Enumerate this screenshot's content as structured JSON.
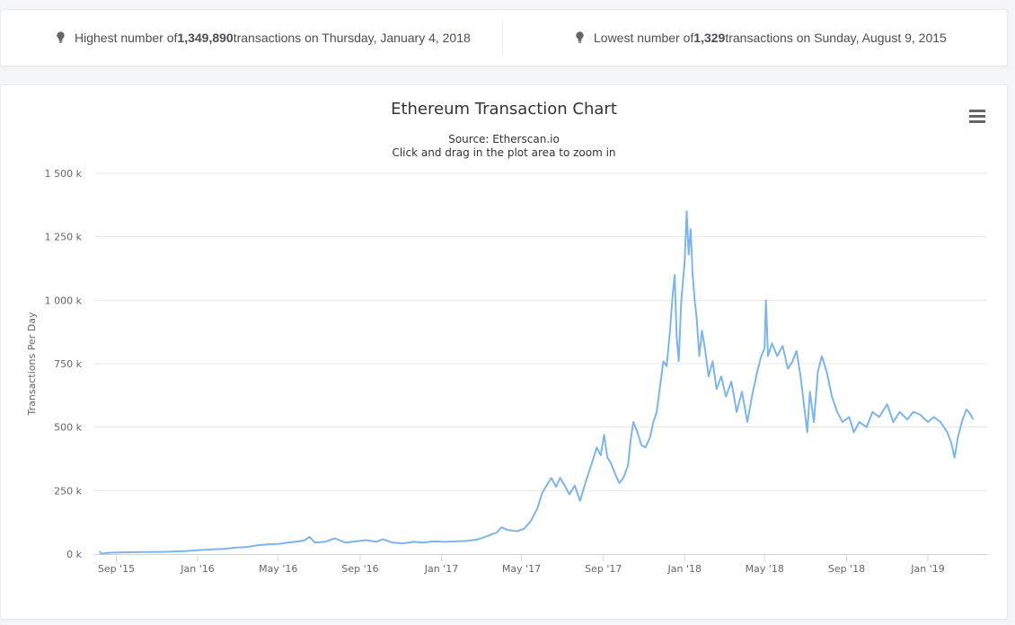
{
  "stats": {
    "highest": {
      "prefix": "Highest number of ",
      "value": "1,349,890",
      "suffix": " transactions on Thursday, January 4, 2018"
    },
    "lowest": {
      "prefix": "Lowest number of ",
      "value": "1,329",
      "suffix": " transactions on Sunday, August 9, 2015"
    },
    "icon": "lightbulb-icon"
  },
  "colors": {
    "line": "#7cb5ec",
    "grid": "#e6e6e6",
    "text": "#666666"
  },
  "chart_data": {
    "type": "line",
    "title": "Ethereum Transaction Chart",
    "subtitle": "Source: Etherscan.io",
    "subtitle2": "Click and drag in the plot area to zoom in",
    "ylabel": "Transactions Per Day",
    "xlabel": "",
    "ylim": [
      0,
      1500000
    ],
    "xlim": [
      "2015-07-30",
      "2019-03-31"
    ],
    "y_ticks": [
      0,
      250000,
      500000,
      750000,
      1000000,
      1250000,
      1500000
    ],
    "y_tick_labels": [
      "0 k",
      "250 k",
      "500 k",
      "750 k",
      "1 000 k",
      "1 250 k",
      "1 500 k"
    ],
    "x_ticks": [
      {
        "date": "2015-09-01",
        "label": "Sep '15"
      },
      {
        "date": "2016-01-01",
        "label": "Jan '16"
      },
      {
        "date": "2016-05-01",
        "label": "May '16"
      },
      {
        "date": "2016-09-01",
        "label": "Sep '16"
      },
      {
        "date": "2017-01-01",
        "label": "Jan '17"
      },
      {
        "date": "2017-05-01",
        "label": "May '17"
      },
      {
        "date": "2017-09-01",
        "label": "Sep '17"
      },
      {
        "date": "2018-01-01",
        "label": "Jan '18"
      },
      {
        "date": "2018-05-01",
        "label": "May '18"
      },
      {
        "date": "2018-09-01",
        "label": "Sep '18"
      },
      {
        "date": "2019-01-01",
        "label": "Jan '19"
      }
    ],
    "grid": true,
    "legend": "none",
    "series": [
      {
        "values": [
          [
            "2015-08-07",
            12000
          ],
          [
            "2015-08-09",
            1329
          ],
          [
            "2015-08-20",
            5000
          ],
          [
            "2015-09-15",
            7000
          ],
          [
            "2015-10-15",
            8000
          ],
          [
            "2015-11-15",
            9000
          ],
          [
            "2015-12-15",
            12000
          ],
          [
            "2016-01-01",
            15000
          ],
          [
            "2016-01-20",
            18000
          ],
          [
            "2016-02-10",
            20000
          ],
          [
            "2016-02-25",
            25000
          ],
          [
            "2016-03-15",
            28000
          ],
          [
            "2016-04-01",
            35000
          ],
          [
            "2016-04-15",
            38000
          ],
          [
            "2016-05-01",
            40000
          ],
          [
            "2016-05-15",
            45000
          ],
          [
            "2016-06-01",
            50000
          ],
          [
            "2016-06-10",
            55000
          ],
          [
            "2016-06-17",
            68000
          ],
          [
            "2016-06-25",
            45000
          ],
          [
            "2016-07-10",
            48000
          ],
          [
            "2016-07-25",
            62000
          ],
          [
            "2016-08-10",
            45000
          ],
          [
            "2016-08-25",
            50000
          ],
          [
            "2016-09-10",
            55000
          ],
          [
            "2016-09-25",
            48000
          ],
          [
            "2016-10-05",
            58000
          ],
          [
            "2016-10-20",
            45000
          ],
          [
            "2016-11-05",
            42000
          ],
          [
            "2016-11-20",
            48000
          ],
          [
            "2016-12-05",
            45000
          ],
          [
            "2016-12-20",
            50000
          ],
          [
            "2017-01-05",
            48000
          ],
          [
            "2017-01-25",
            50000
          ],
          [
            "2017-02-10",
            52000
          ],
          [
            "2017-02-25",
            58000
          ],
          [
            "2017-03-10",
            70000
          ],
          [
            "2017-03-25",
            85000
          ],
          [
            "2017-04-01",
            105000
          ],
          [
            "2017-04-10",
            95000
          ],
          [
            "2017-04-25",
            90000
          ],
          [
            "2017-05-05",
            100000
          ],
          [
            "2017-05-15",
            130000
          ],
          [
            "2017-05-25",
            180000
          ],
          [
            "2017-06-01",
            240000
          ],
          [
            "2017-06-10",
            280000
          ],
          [
            "2017-06-15",
            300000
          ],
          [
            "2017-06-22",
            265000
          ],
          [
            "2017-06-28",
            300000
          ],
          [
            "2017-07-05",
            270000
          ],
          [
            "2017-07-12",
            235000
          ],
          [
            "2017-07-20",
            270000
          ],
          [
            "2017-07-28",
            210000
          ],
          [
            "2017-08-05",
            280000
          ],
          [
            "2017-08-15",
            360000
          ],
          [
            "2017-08-22",
            420000
          ],
          [
            "2017-08-28",
            390000
          ],
          [
            "2017-09-02",
            470000
          ],
          [
            "2017-09-07",
            380000
          ],
          [
            "2017-09-12",
            360000
          ],
          [
            "2017-09-18",
            320000
          ],
          [
            "2017-09-25",
            280000
          ],
          [
            "2017-10-01",
            300000
          ],
          [
            "2017-10-08",
            350000
          ],
          [
            "2017-10-12",
            450000
          ],
          [
            "2017-10-16",
            520000
          ],
          [
            "2017-10-22",
            480000
          ],
          [
            "2017-10-28",
            430000
          ],
          [
            "2017-11-03",
            420000
          ],
          [
            "2017-11-10",
            460000
          ],
          [
            "2017-11-15",
            520000
          ],
          [
            "2017-11-20",
            560000
          ],
          [
            "2017-11-25",
            660000
          ],
          [
            "2017-11-30",
            760000
          ],
          [
            "2017-12-05",
            740000
          ],
          [
            "2017-12-10",
            880000
          ],
          [
            "2017-12-14",
            1020000
          ],
          [
            "2017-12-17",
            1100000
          ],
          [
            "2017-12-20",
            860000
          ],
          [
            "2017-12-23",
            760000
          ],
          [
            "2017-12-27",
            1000000
          ],
          [
            "2018-01-01",
            1150000
          ],
          [
            "2018-01-04",
            1349890
          ],
          [
            "2018-01-07",
            1180000
          ],
          [
            "2018-01-10",
            1280000
          ],
          [
            "2018-01-13",
            1100000
          ],
          [
            "2018-01-16",
            1000000
          ],
          [
            "2018-01-19",
            930000
          ],
          [
            "2018-01-23",
            780000
          ],
          [
            "2018-01-27",
            880000
          ],
          [
            "2018-02-01",
            800000
          ],
          [
            "2018-02-06",
            700000
          ],
          [
            "2018-02-12",
            760000
          ],
          [
            "2018-02-18",
            650000
          ],
          [
            "2018-02-25",
            700000
          ],
          [
            "2018-03-04",
            620000
          ],
          [
            "2018-03-12",
            680000
          ],
          [
            "2018-03-20",
            560000
          ],
          [
            "2018-03-28",
            640000
          ],
          [
            "2018-04-05",
            520000
          ],
          [
            "2018-04-12",
            620000
          ],
          [
            "2018-04-20",
            720000
          ],
          [
            "2018-04-26",
            780000
          ],
          [
            "2018-05-01",
            810000
          ],
          [
            "2018-05-03",
            1000000
          ],
          [
            "2018-05-06",
            780000
          ],
          [
            "2018-05-12",
            830000
          ],
          [
            "2018-05-20",
            780000
          ],
          [
            "2018-05-28",
            820000
          ],
          [
            "2018-06-05",
            730000
          ],
          [
            "2018-06-12",
            760000
          ],
          [
            "2018-06-18",
            800000
          ],
          [
            "2018-06-24",
            700000
          ],
          [
            "2018-06-30",
            570000
          ],
          [
            "2018-07-04",
            480000
          ],
          [
            "2018-07-08",
            640000
          ],
          [
            "2018-07-14",
            520000
          ],
          [
            "2018-07-20",
            720000
          ],
          [
            "2018-07-26",
            780000
          ],
          [
            "2018-08-02",
            720000
          ],
          [
            "2018-08-10",
            620000
          ],
          [
            "2018-08-18",
            560000
          ],
          [
            "2018-08-26",
            520000
          ],
          [
            "2018-09-05",
            540000
          ],
          [
            "2018-09-12",
            480000
          ],
          [
            "2018-09-20",
            520000
          ],
          [
            "2018-10-01",
            500000
          ],
          [
            "2018-10-10",
            560000
          ],
          [
            "2018-10-20",
            540000
          ],
          [
            "2018-11-01",
            590000
          ],
          [
            "2018-11-10",
            520000
          ],
          [
            "2018-11-20",
            560000
          ],
          [
            "2018-12-01",
            530000
          ],
          [
            "2018-12-10",
            560000
          ],
          [
            "2018-12-20",
            550000
          ],
          [
            "2019-01-01",
            520000
          ],
          [
            "2019-01-10",
            540000
          ],
          [
            "2019-01-20",
            520000
          ],
          [
            "2019-01-30",
            480000
          ],
          [
            "2019-02-05",
            440000
          ],
          [
            "2019-02-10",
            380000
          ],
          [
            "2019-02-15",
            460000
          ],
          [
            "2019-02-22",
            530000
          ],
          [
            "2019-02-28",
            570000
          ],
          [
            "2019-03-06",
            550000
          ],
          [
            "2019-03-10",
            530000
          ]
        ]
      }
    ]
  }
}
